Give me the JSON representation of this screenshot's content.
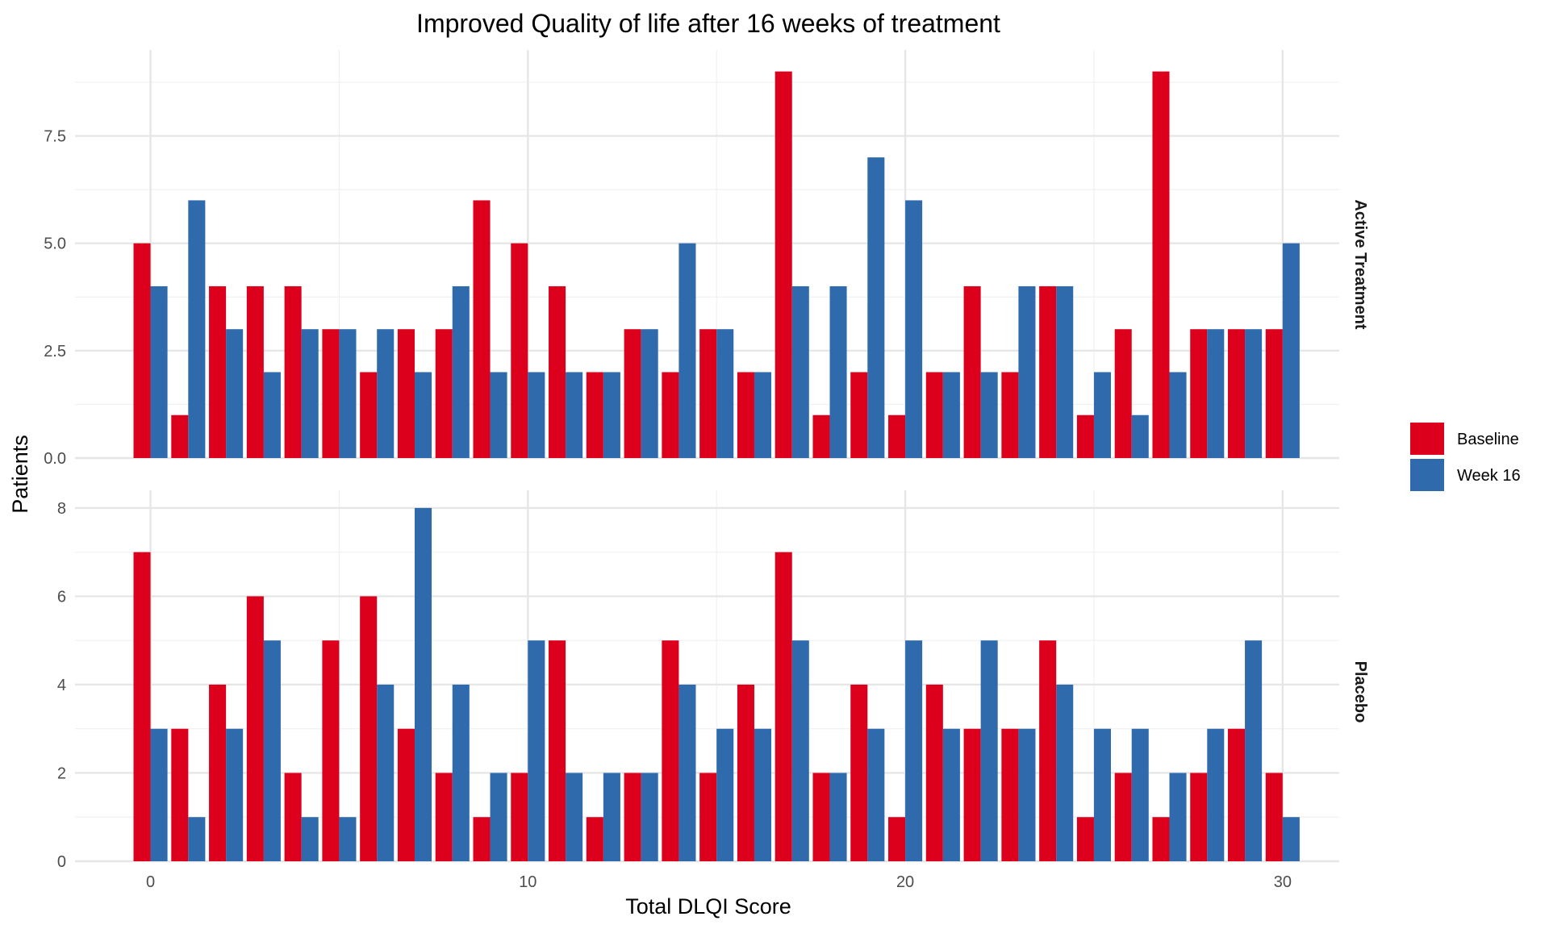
{
  "chart_data": {
    "type": "bar",
    "title": "Improved Quality of life after 16 weeks of treatment",
    "xlabel": "Total DLQI Score",
    "ylabel": "Patients",
    "x": [
      0,
      1,
      2,
      3,
      4,
      5,
      6,
      7,
      8,
      9,
      10,
      11,
      12,
      13,
      14,
      15,
      16,
      17,
      18,
      19,
      20,
      21,
      22,
      23,
      24,
      25,
      26,
      27,
      28,
      29,
      30
    ],
    "xlim": [
      -2,
      31.5
    ],
    "x_ticks": [
      "0",
      "10",
      "20",
      "30"
    ],
    "grid": true,
    "legend_position": "right",
    "colors": {
      "Baseline": "#dc001d",
      "Week 16": "#2f6aac"
    },
    "series_names": [
      "Baseline",
      "Week 16"
    ],
    "panels": [
      {
        "label": "Active Treatment",
        "ylim": [
          0,
          9.5
        ],
        "y_ticks": [
          "0.0",
          "2.5",
          "5.0",
          "7.5"
        ],
        "series": [
          {
            "name": "Baseline",
            "values": [
              5,
              1,
              4,
              4,
              4,
              3,
              2,
              3,
              3,
              6,
              5,
              4,
              2,
              3,
              2,
              3,
              2,
              9,
              1,
              2,
              1,
              2,
              4,
              2,
              4,
              1,
              3,
              9,
              3,
              3,
              3
            ]
          },
          {
            "name": "Week 16",
            "values": [
              4,
              6,
              3,
              2,
              3,
              3,
              3,
              2,
              4,
              2,
              2,
              2,
              2,
              3,
              5,
              3,
              2,
              4,
              4,
              7,
              6,
              2,
              2,
              4,
              4,
              2,
              1,
              2,
              3,
              3,
              5
            ]
          }
        ]
      },
      {
        "label": "Placebo",
        "ylim": [
          0,
          8.4
        ],
        "y_ticks": [
          "0",
          "2",
          "4",
          "6",
          "8"
        ],
        "series": [
          {
            "name": "Baseline",
            "values": [
              7,
              3,
              4,
              6,
              2,
              5,
              6,
              3,
              2,
              1,
              2,
              5,
              1,
              2,
              5,
              2,
              4,
              7,
              2,
              4,
              1,
              4,
              3,
              3,
              5,
              1,
              2,
              1,
              2,
              3,
              2
            ]
          },
          {
            "name": "Week 16",
            "values": [
              3,
              1,
              3,
              5,
              1,
              1,
              4,
              8,
              4,
              2,
              5,
              2,
              2,
              2,
              4,
              3,
              3,
              5,
              2,
              3,
              5,
              3,
              5,
              3,
              4,
              3,
              3,
              2,
              3,
              5,
              1
            ]
          }
        ]
      }
    ]
  }
}
